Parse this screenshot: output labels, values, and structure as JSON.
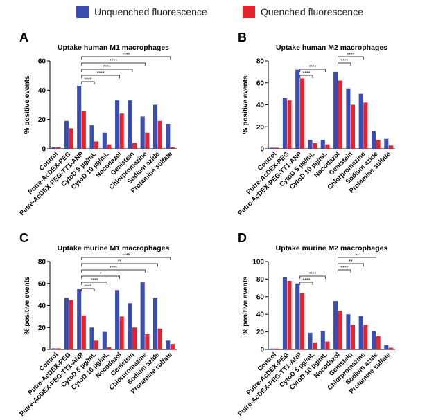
{
  "chart_data": [
    {
      "type": "bar",
      "panel_label": "A",
      "title": "Uptake human M1 macrophages",
      "y_label": "% positive events",
      "categories": [
        "Control",
        "Putre-AcDEX-PEG",
        "Putre-AcDEX-PEG-TT1-ANP",
        "CytoD 5 µg/mL",
        "CytoD 10 µg/mL",
        "Nocodazol",
        "Genistein",
        "Chlorpromazine",
        "Sodium azide",
        "Protamine sulfate"
      ],
      "series": [
        {
          "name": "Unquenched fluorescence",
          "color": "#3a4db0",
          "values": [
            1,
            19,
            43,
            16,
            11,
            33,
            33,
            22,
            30,
            17
          ]
        },
        {
          "name": "Quenched fluorescence",
          "color": "#e8222c",
          "values": [
            1,
            14,
            26,
            5,
            3,
            24,
            4,
            11,
            19,
            1
          ]
        }
      ],
      "ylim": [
        0,
        60
      ],
      "yticks": [
        0,
        20,
        40,
        60
      ],
      "annotations": [
        "****",
        "****",
        "****",
        "****",
        "****"
      ]
    },
    {
      "type": "bar",
      "panel_label": "B",
      "title": "Uptake human M2 macrophages",
      "y_label": "% positive events",
      "categories": [
        "Control",
        "Putre-AcDEX-PEG",
        "Putre-AcDEX-PEG-TT1-ANP",
        "CytoD 5 µg/mL",
        "CytoD 10 µg/mL",
        "Nocodazol",
        "Genistein",
        "Chlorpromazine",
        "Sodium azide",
        "Protamine sulfate"
      ],
      "series": [
        {
          "name": "Unquenched fluorescence",
          "color": "#3a4db0",
          "values": [
            1,
            46,
            72,
            8,
            8,
            70,
            55,
            50,
            16,
            9
          ]
        },
        {
          "name": "Quenched fluorescence",
          "color": "#e8222c",
          "values": [
            1,
            44,
            64,
            5,
            4,
            62,
            40,
            42,
            8,
            3
          ]
        }
      ],
      "ylim": [
        0,
        80
      ],
      "yticks": [
        0,
        20,
        40,
        60,
        80
      ],
      "annotations": [
        "****",
        "****",
        "****",
        "****"
      ]
    },
    {
      "type": "bar",
      "panel_label": "C",
      "title": "Uptake murine M1 macrophages",
      "y_label": "% positive events",
      "categories": [
        "Control",
        "Putre-AcDEX-PEG",
        "Putre-AcDEX-PEG-TT1-ANP",
        "CytoD 5 µg/mL",
        "CytoD 10 µg/mL",
        "Nocodazol",
        "Genistein",
        "Chlorpromazine",
        "Sodium azide",
        "Protamine sulfate"
      ],
      "series": [
        {
          "name": "Unquenched fluorescence",
          "color": "#3a4db0",
          "values": [
            1,
            47,
            55,
            20,
            16,
            54,
            42,
            61,
            47,
            8
          ]
        },
        {
          "name": "Quenched fluorescence",
          "color": "#e8222c",
          "values": [
            1,
            45,
            31,
            8,
            2,
            30,
            20,
            14,
            19,
            5
          ]
        }
      ],
      "ylim": [
        0,
        80
      ],
      "yticks": [
        0,
        20,
        40,
        60,
        80
      ],
      "annotations": [
        "****",
        "**",
        "****",
        "*",
        "****",
        "****"
      ]
    },
    {
      "type": "bar",
      "panel_label": "D",
      "title": "Uptake murine M2 macrophages",
      "y_label": "% positive events",
      "categories": [
        "Control",
        "Putre-AcDEX-PEG",
        "Putre-AcDEX-PEG-TT1-ANP",
        "CytoD 5 µg/mL",
        "CytoD 10 µg/mL",
        "Nocodazol",
        "Genistein",
        "Chlorpromazine",
        "Sodium azide",
        "Protamine sulfate"
      ],
      "series": [
        {
          "name": "Unquenched fluorescence",
          "color": "#3a4db0",
          "values": [
            1,
            82,
            75,
            19,
            21,
            55,
            40,
            38,
            21,
            5
          ]
        },
        {
          "name": "Quenched fluorescence",
          "color": "#e8222c",
          "values": [
            1,
            78,
            64,
            8,
            9,
            44,
            28,
            28,
            15,
            2
          ]
        }
      ],
      "ylim": [
        0,
        100
      ],
      "yticks": [
        0,
        20,
        40,
        60,
        80,
        100
      ],
      "annotations": [
        "**",
        "**",
        "****",
        "****",
        "****"
      ]
    }
  ]
}
